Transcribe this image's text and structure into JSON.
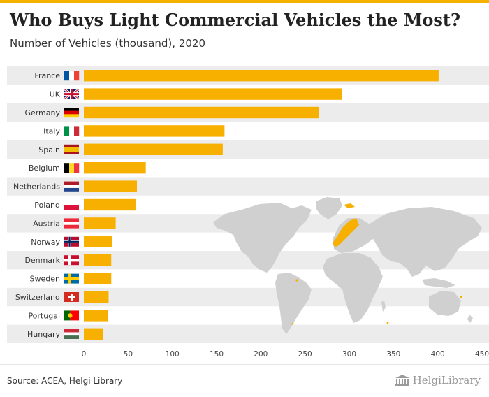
{
  "header": {
    "title": "Who Buys Light Commercial Vehicles the Most?",
    "subtitle": "Number of Vehicles (thousand), 2020"
  },
  "footer": {
    "source": "Source: ACEA, Helgi Library",
    "logo_text": "HelgiLibrary"
  },
  "colors": {
    "bar": "#f7b000",
    "accent": "#f5b100",
    "row_band": "#ececec",
    "map_land": "#d0d0d0",
    "map_highlight": "#f7b000"
  },
  "chart_data": {
    "type": "bar",
    "orientation": "horizontal",
    "title": "Who Buys Light Commercial Vehicles the Most?",
    "subtitle": "Number of Vehicles (thousand), 2020",
    "categories": [
      "France",
      "UK",
      "Germany",
      "Italy",
      "Spain",
      "Belgium",
      "Netherlands",
      "Poland",
      "Austria",
      "Norway",
      "Denmark",
      "Sweden",
      "Switzerland",
      "Portugal",
      "Hungary"
    ],
    "values": [
      401,
      292,
      266,
      159,
      157,
      70,
      60,
      59,
      36,
      32,
      31,
      31,
      28,
      27,
      22
    ],
    "xlim": [
      0,
      450
    ],
    "xticks": [
      0,
      50,
      100,
      150,
      200,
      250,
      300,
      350,
      400,
      450
    ],
    "grid": false,
    "legend": "none"
  }
}
